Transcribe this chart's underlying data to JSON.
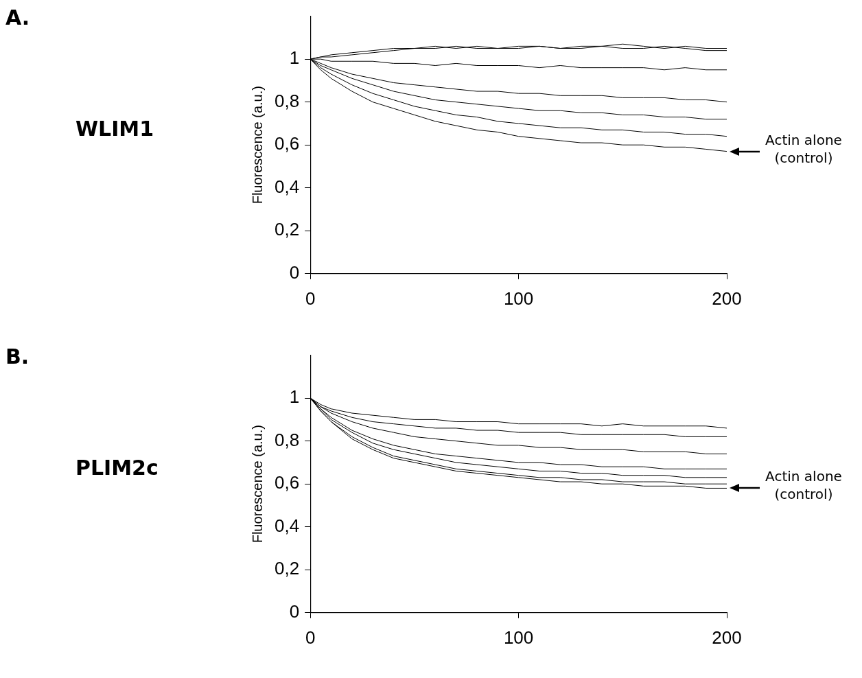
{
  "chart_data": [
    {
      "type": "line",
      "title": "WLIM1",
      "ylabel": "Fluorescence (a.u.)",
      "annotations": [
        "A.",
        {
          "text": "Actin alone (control)",
          "x": 200,
          "y": 0.57
        }
      ],
      "x": [
        0,
        5,
        10,
        20,
        30,
        40,
        50,
        60,
        70,
        80,
        90,
        100,
        110,
        120,
        130,
        140,
        150,
        160,
        170,
        180,
        190,
        200
      ],
      "series": [
        {
          "color": "#000000",
          "values": [
            1.0,
            1.01,
            1.02,
            1.03,
            1.04,
            1.05,
            1.05,
            1.06,
            1.05,
            1.06,
            1.05,
            1.06,
            1.06,
            1.05,
            1.06,
            1.06,
            1.07,
            1.06,
            1.05,
            1.06,
            1.05,
            1.05
          ]
        },
        {
          "color": "#000000",
          "values": [
            1.0,
            1.01,
            1.01,
            1.02,
            1.03,
            1.04,
            1.05,
            1.05,
            1.06,
            1.05,
            1.05,
            1.05,
            1.06,
            1.05,
            1.05,
            1.06,
            1.05,
            1.05,
            1.06,
            1.05,
            1.04,
            1.04
          ]
        },
        {
          "color": "#000000",
          "values": [
            1.0,
            1.0,
            0.99,
            0.99,
            0.99,
            0.98,
            0.98,
            0.97,
            0.98,
            0.97,
            0.97,
            0.97,
            0.96,
            0.97,
            0.96,
            0.96,
            0.96,
            0.96,
            0.95,
            0.96,
            0.95,
            0.95
          ]
        },
        {
          "color": "#000000",
          "values": [
            1.0,
            0.98,
            0.96,
            0.93,
            0.91,
            0.89,
            0.88,
            0.87,
            0.86,
            0.85,
            0.85,
            0.84,
            0.84,
            0.83,
            0.83,
            0.83,
            0.82,
            0.82,
            0.82,
            0.81,
            0.81,
            0.8
          ]
        },
        {
          "color": "#000000",
          "values": [
            1.0,
            0.97,
            0.95,
            0.91,
            0.88,
            0.85,
            0.83,
            0.81,
            0.8,
            0.79,
            0.78,
            0.77,
            0.76,
            0.76,
            0.75,
            0.75,
            0.74,
            0.74,
            0.73,
            0.73,
            0.72,
            0.72
          ]
        },
        {
          "color": "#000000",
          "values": [
            1.0,
            0.96,
            0.93,
            0.88,
            0.84,
            0.81,
            0.78,
            0.76,
            0.74,
            0.73,
            0.71,
            0.7,
            0.69,
            0.68,
            0.68,
            0.67,
            0.67,
            0.66,
            0.66,
            0.65,
            0.65,
            0.64
          ]
        },
        {
          "color": "#000000",
          "values": [
            1.0,
            0.95,
            0.91,
            0.85,
            0.8,
            0.77,
            0.74,
            0.71,
            0.69,
            0.67,
            0.66,
            0.64,
            0.63,
            0.62,
            0.61,
            0.61,
            0.6,
            0.6,
            0.59,
            0.59,
            0.58,
            0.57
          ]
        }
      ],
      "xlim": [
        0,
        200
      ],
      "xticks": [
        0,
        100,
        200
      ],
      "ylim": [
        0,
        1.2
      ],
      "yticks": [
        {
          "value": 0,
          "label": "0"
        },
        {
          "value": 0.2,
          "label": "0,2"
        },
        {
          "value": 0.4,
          "label": "0,4"
        },
        {
          "value": 0.6,
          "label": "0,6"
        },
        {
          "value": 0.8,
          "label": "0,8"
        },
        {
          "value": 1,
          "label": "1"
        }
      ],
      "grid": false,
      "legend": false,
      "marker": "none",
      "line_style": "solid"
    },
    {
      "type": "line",
      "title": "PLIM2c",
      "ylabel": "Fluorescence (a.u.)",
      "annotations": [
        "B.",
        {
          "text": "Actin alone (control)",
          "x": 200,
          "y": 0.58
        }
      ],
      "x": [
        0,
        5,
        10,
        20,
        30,
        40,
        50,
        60,
        70,
        80,
        90,
        100,
        110,
        120,
        130,
        140,
        150,
        160,
        170,
        180,
        190,
        200
      ],
      "series": [
        {
          "color": "#000000",
          "values": [
            1.0,
            0.97,
            0.95,
            0.93,
            0.92,
            0.91,
            0.9,
            0.9,
            0.89,
            0.89,
            0.89,
            0.88,
            0.88,
            0.88,
            0.88,
            0.87,
            0.88,
            0.87,
            0.87,
            0.87,
            0.87,
            0.86
          ]
        },
        {
          "color": "#000000",
          "values": [
            1.0,
            0.96,
            0.94,
            0.91,
            0.89,
            0.88,
            0.87,
            0.86,
            0.86,
            0.85,
            0.85,
            0.84,
            0.84,
            0.84,
            0.83,
            0.83,
            0.83,
            0.83,
            0.83,
            0.82,
            0.82,
            0.82
          ]
        },
        {
          "color": "#000000",
          "values": [
            1.0,
            0.96,
            0.93,
            0.89,
            0.86,
            0.84,
            0.82,
            0.81,
            0.8,
            0.79,
            0.78,
            0.78,
            0.77,
            0.77,
            0.76,
            0.76,
            0.76,
            0.75,
            0.75,
            0.75,
            0.74,
            0.74
          ]
        },
        {
          "color": "#000000",
          "values": [
            1.0,
            0.95,
            0.91,
            0.85,
            0.81,
            0.78,
            0.76,
            0.74,
            0.73,
            0.72,
            0.71,
            0.7,
            0.7,
            0.69,
            0.69,
            0.68,
            0.68,
            0.68,
            0.67,
            0.67,
            0.67,
            0.67
          ]
        },
        {
          "color": "#000000",
          "values": [
            1.0,
            0.95,
            0.9,
            0.84,
            0.79,
            0.76,
            0.74,
            0.72,
            0.7,
            0.69,
            0.68,
            0.67,
            0.66,
            0.66,
            0.65,
            0.65,
            0.64,
            0.64,
            0.64,
            0.63,
            0.63,
            0.63
          ]
        },
        {
          "color": "#000000",
          "values": [
            1.0,
            0.94,
            0.89,
            0.82,
            0.77,
            0.73,
            0.71,
            0.69,
            0.67,
            0.66,
            0.65,
            0.64,
            0.63,
            0.63,
            0.62,
            0.62,
            0.61,
            0.61,
            0.61,
            0.6,
            0.6,
            0.6
          ]
        },
        {
          "color": "#000000",
          "values": [
            1.0,
            0.94,
            0.89,
            0.81,
            0.76,
            0.72,
            0.7,
            0.68,
            0.66,
            0.65,
            0.64,
            0.63,
            0.62,
            0.61,
            0.61,
            0.6,
            0.6,
            0.59,
            0.59,
            0.59,
            0.58,
            0.58
          ]
        }
      ],
      "xlim": [
        0,
        200
      ],
      "xticks": [
        0,
        100,
        200
      ],
      "ylim": [
        0,
        1.2
      ],
      "yticks": [
        {
          "value": 0,
          "label": "0"
        },
        {
          "value": 0.2,
          "label": "0,2"
        },
        {
          "value": 0.4,
          "label": "0,4"
        },
        {
          "value": 0.6,
          "label": "0,6"
        },
        {
          "value": 0.8,
          "label": "0,8"
        },
        {
          "value": 1,
          "label": "1"
        }
      ],
      "grid": false,
      "legend": false,
      "marker": "none",
      "line_style": "solid"
    }
  ]
}
